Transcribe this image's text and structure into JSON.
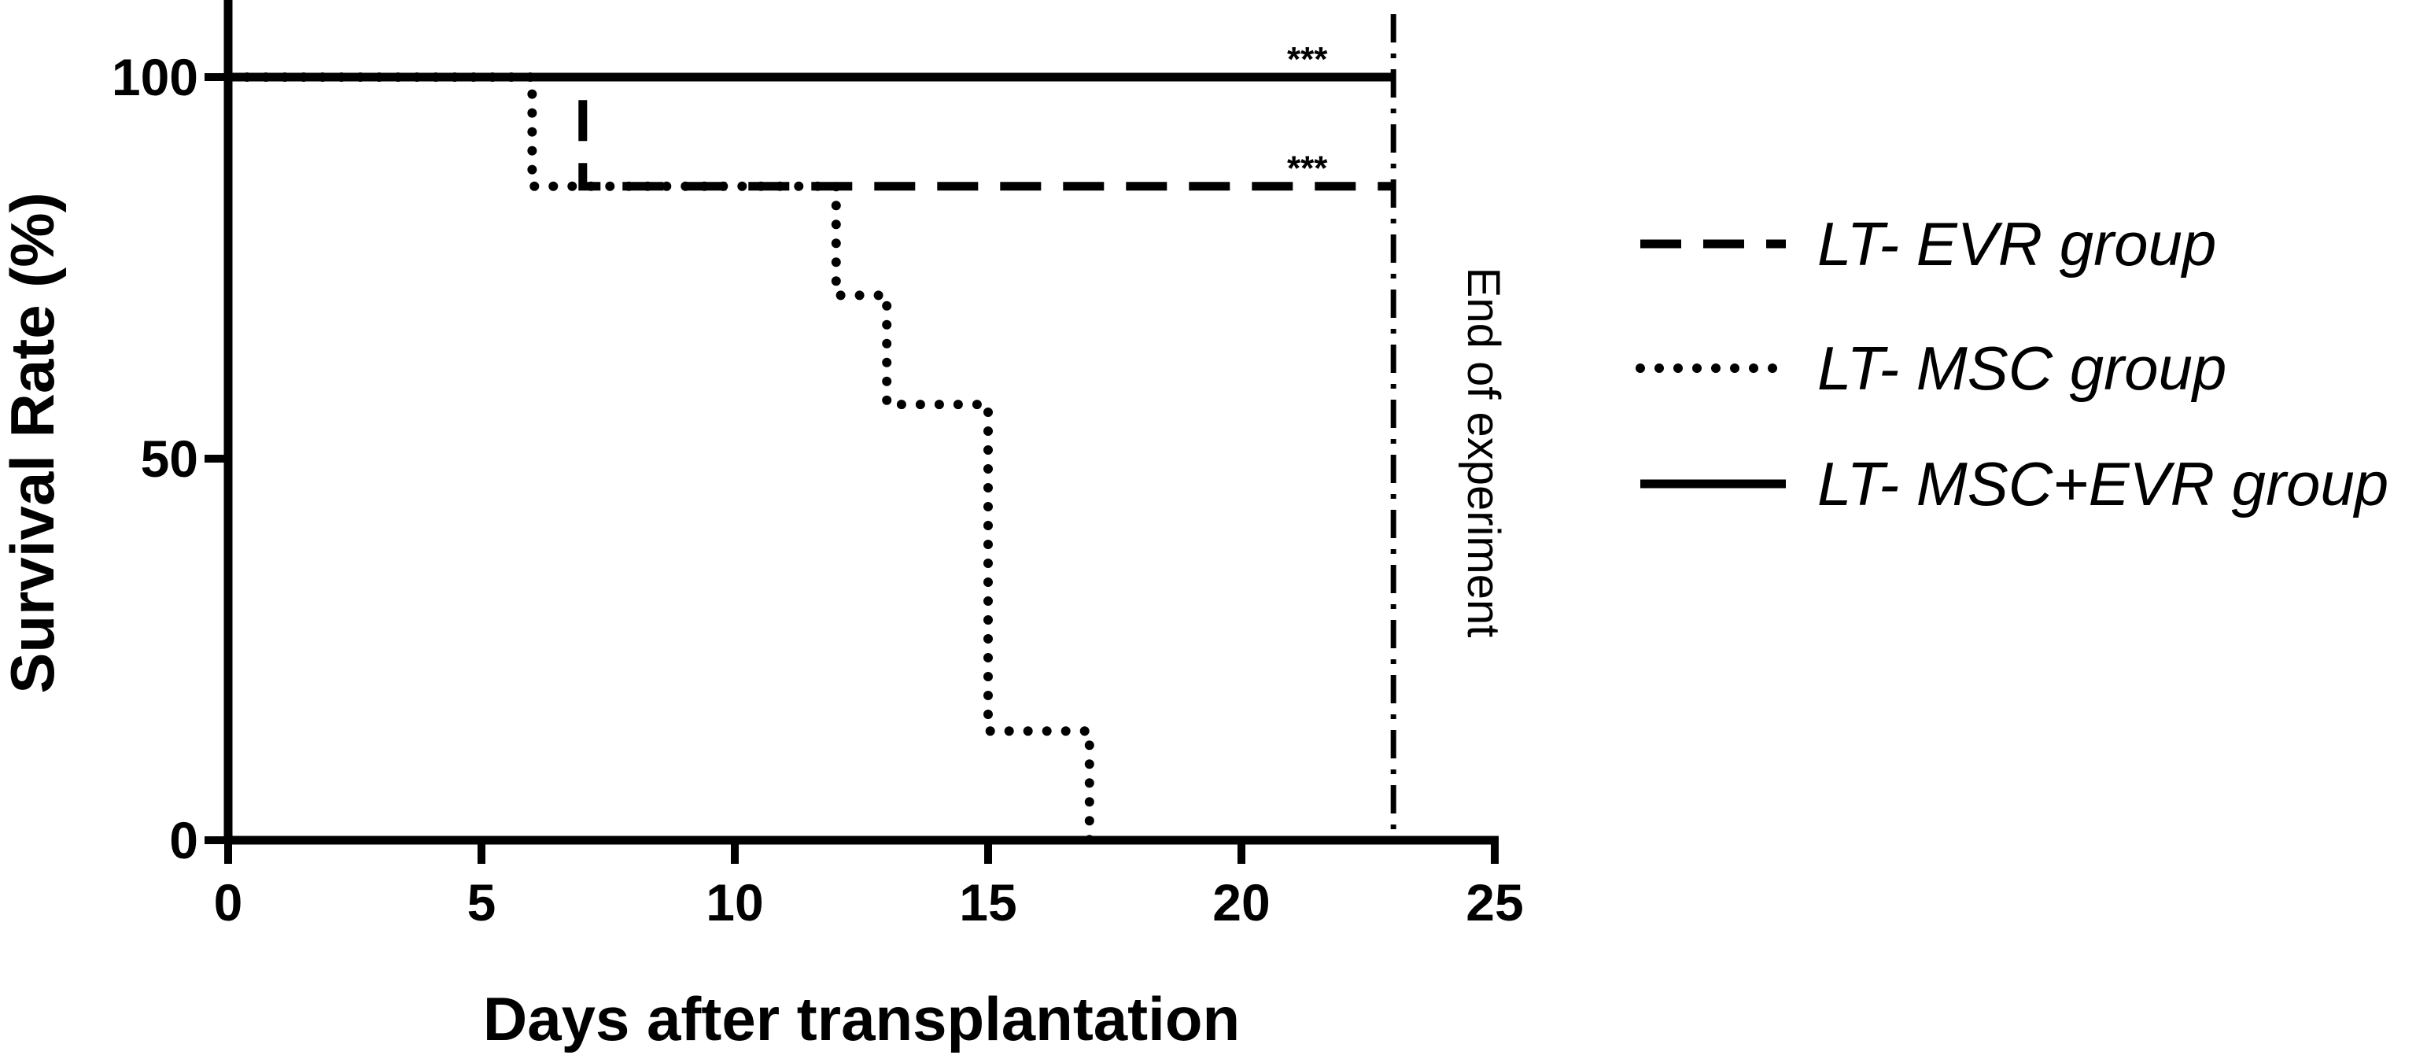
{
  "chart_data": {
    "type": "line",
    "step": true,
    "title": "",
    "xlabel": "Days after transplantation",
    "ylabel": "Survival Rate (%)",
    "xlim": [
      0,
      25
    ],
    "ylim": [
      0,
      100
    ],
    "x_ticks": [
      0,
      5,
      10,
      15,
      20,
      25
    ],
    "y_ticks": [
      0,
      50,
      100
    ],
    "legend_position": "right",
    "series": [
      {
        "name": "LT- EVR group",
        "style": "dashed",
        "points": [
          [
            0,
            100
          ],
          [
            7,
            100
          ],
          [
            7,
            85.7
          ],
          [
            23,
            85.7
          ]
        ]
      },
      {
        "name": "LT- MSC group",
        "style": "dotted",
        "points": [
          [
            0,
            100
          ],
          [
            6,
            100
          ],
          [
            6,
            85.7
          ],
          [
            12,
            85.7
          ],
          [
            12,
            71.4
          ],
          [
            13,
            71.4
          ],
          [
            13,
            57.1
          ],
          [
            15,
            57.1
          ],
          [
            15,
            14.3
          ],
          [
            17,
            14.3
          ],
          [
            17,
            0
          ]
        ]
      },
      {
        "name": "LT- MSC+EVR group",
        "style": "solid",
        "points": [
          [
            0,
            100
          ],
          [
            23,
            100
          ]
        ]
      }
    ],
    "end_line": {
      "x": 23,
      "label": "End of experiment"
    },
    "significance": [
      {
        "label": "***",
        "x": 21.3,
        "y": 100
      },
      {
        "label": "***",
        "x": 21.3,
        "y": 85.7
      }
    ]
  }
}
